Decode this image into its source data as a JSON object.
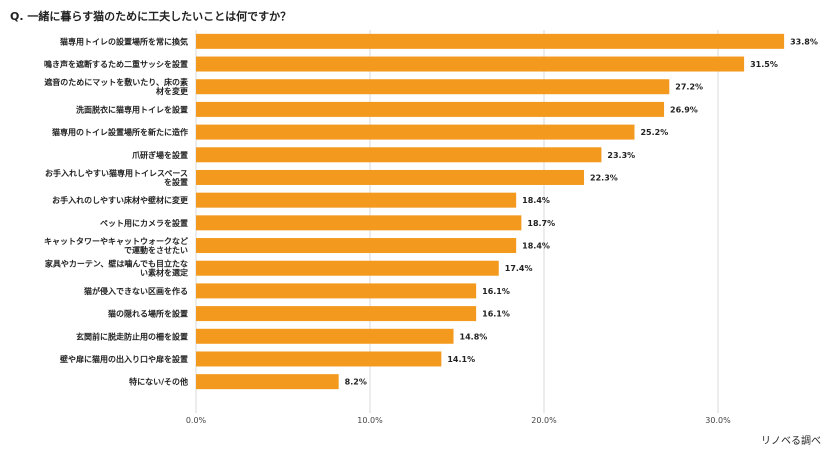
{
  "title": "Q. 一緒に暮らす猫のために工夫したいことは何ですか？",
  "credit": "リノベる調べ",
  "colors": {
    "bar": "#F39A1E",
    "grid": "#D9D9D9"
  },
  "chart_data": {
    "type": "bar",
    "orientation": "horizontal",
    "title": "Q. 一緒に暮らす猫のために工夫したいことは何ですか？",
    "categories": [
      [
        "猫専用トイレの設置場所を常に換気"
      ],
      [
        "鳴き声を遮断するため二重サッシを設置"
      ],
      [
        "遮音のためにマットを敷いたり、床の素",
        "材を変更"
      ],
      [
        "洗面脱衣に猫専用トイレを設置"
      ],
      [
        "猫専用のトイレ設置場所を新たに造作"
      ],
      [
        "爪研ぎ場を設置"
      ],
      [
        "お手入れしやすい猫専用トイレスペース",
        "を設置"
      ],
      [
        "お手入れのしやすい床材や壁材に変更"
      ],
      [
        "ペット用にカメラを設置"
      ],
      [
        "キャットタワーやキャットウォークなど",
        "で運動をさせたい"
      ],
      [
        "家具やカーテン、壁は噛んでも目立たな",
        "い素材を選定"
      ],
      [
        "猫が侵入できない区画を作る"
      ],
      [
        "猫の隠れる場所を設置"
      ],
      [
        "玄関前に脱走防止用の柵を設置"
      ],
      [
        "壁や扉に猫用の出入り口や扉を設置"
      ],
      [
        "特にない/その他"
      ]
    ],
    "values": [
      33.8,
      31.5,
      27.2,
      26.9,
      25.2,
      23.3,
      22.3,
      18.4,
      18.7,
      18.4,
      17.4,
      16.1,
      16.1,
      14.8,
      14.1,
      8.2
    ],
    "value_labels": [
      "33.8%",
      "31.5%",
      "27.2%",
      "26.9%",
      "25.2%",
      "23.3%",
      "22.3%",
      "18.4%",
      "18.7%",
      "18.4%",
      "17.4%",
      "16.1%",
      "16.1%",
      "14.8%",
      "14.1%",
      "8.2%"
    ],
    "xlim": [
      0,
      34
    ],
    "xticks": [
      0,
      10,
      20,
      30
    ],
    "xtick_labels": [
      "0.0%",
      "10.0%",
      "20.0%",
      "30.0%"
    ],
    "grid": true
  }
}
